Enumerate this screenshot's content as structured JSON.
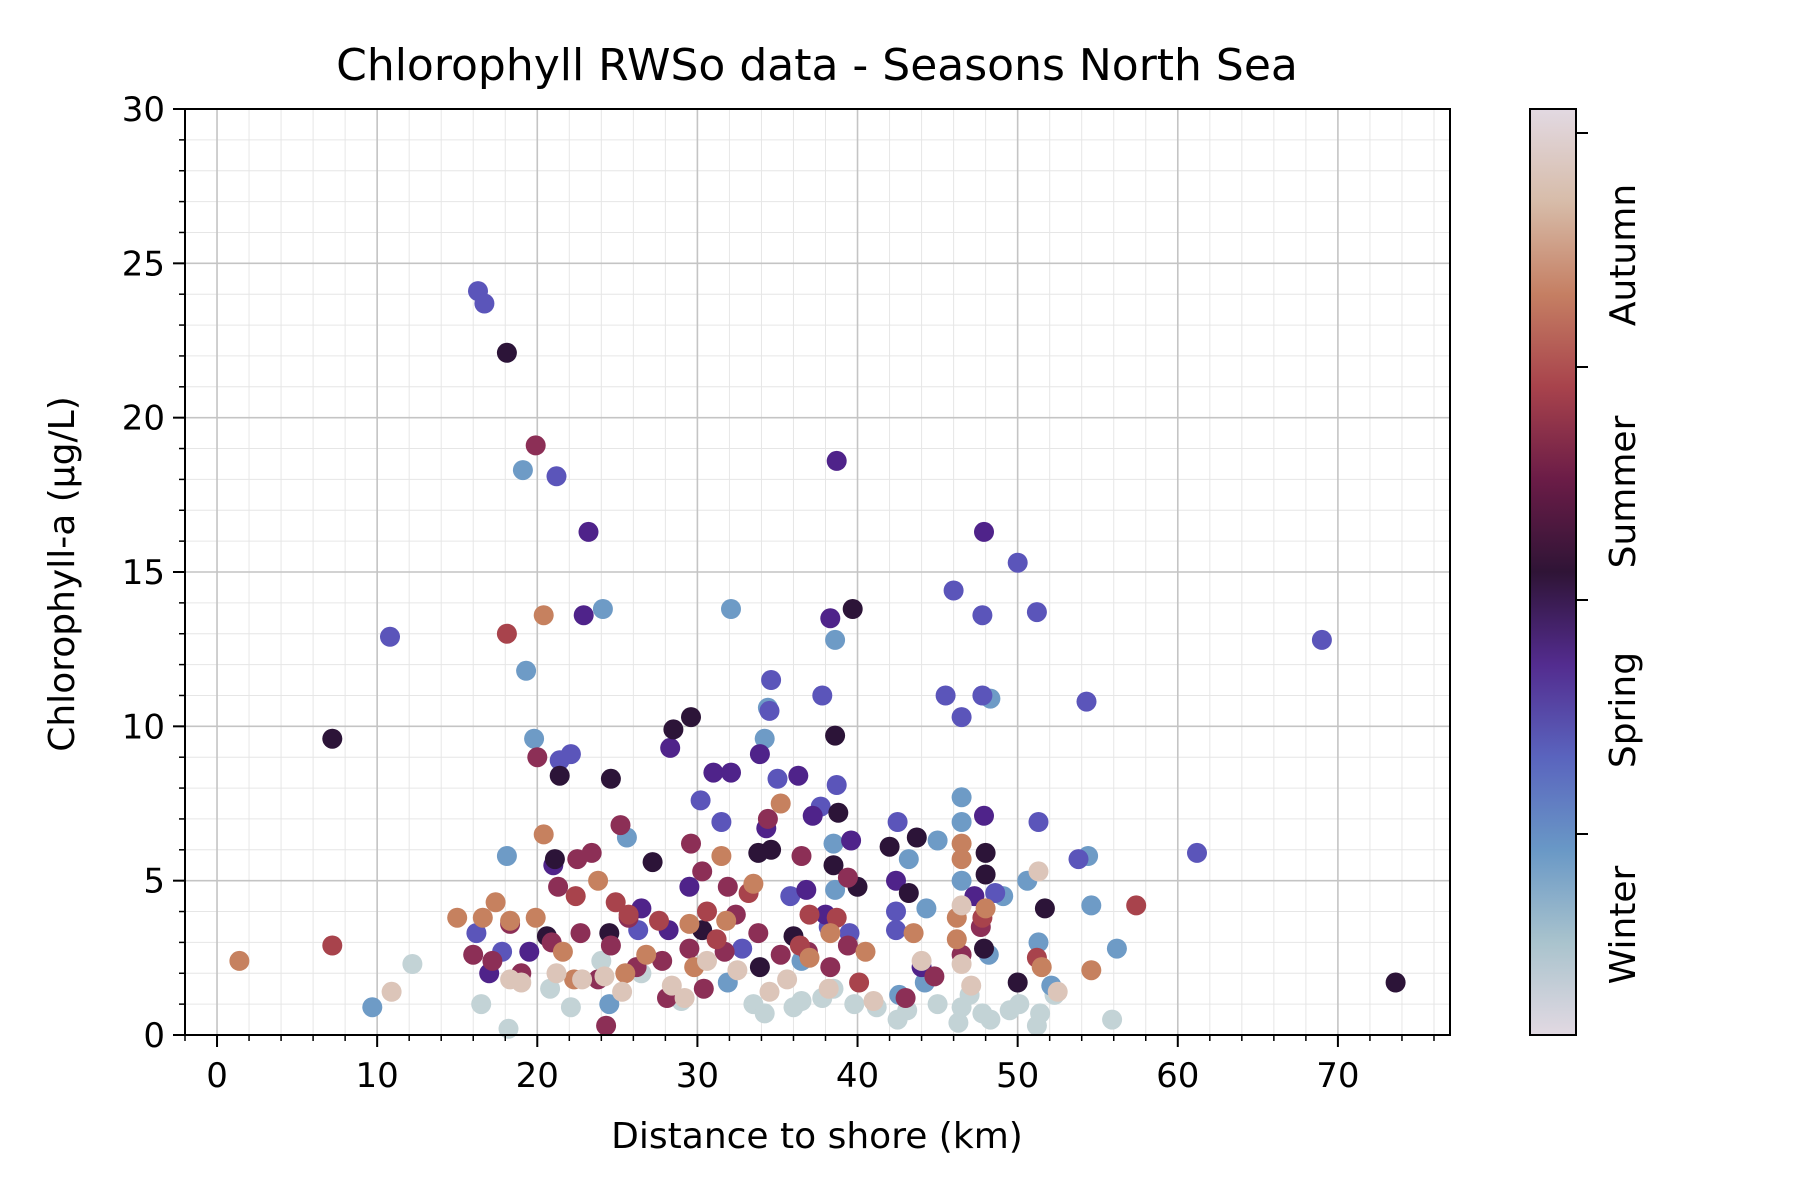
{
  "chart_data": {
    "type": "scatter",
    "title": "Chlorophyll RWSo data - Seasons North Sea",
    "xlabel": "Distance to shore (km)",
    "ylabel": "Chlorophyll-a (µg/L)",
    "xlim": [
      -2,
      77
    ],
    "ylim": [
      0,
      30
    ],
    "x_ticks": [
      0,
      10,
      20,
      30,
      40,
      50,
      60,
      70
    ],
    "x_tick_labels": [
      "0",
      "10",
      "20",
      "30",
      "40",
      "50",
      "60",
      "70"
    ],
    "y_ticks": [
      0,
      5,
      10,
      15,
      20,
      25,
      30
    ],
    "y_tick_labels": [
      "0",
      "5",
      "10",
      "15",
      "20",
      "25",
      "30"
    ],
    "grid": true,
    "colormap": "twilight_shifted",
    "colorbar": {
      "labels": [
        "Winter",
        "Spring",
        "Summer",
        "Autumn"
      ],
      "stops": [
        "#e2d9e2",
        "#a9c3cd",
        "#6998c6",
        "#5a64be",
        "#532c8f",
        "#2f1436",
        "#6b1c47",
        "#a8434c",
        "#c57f63",
        "#d7bca9",
        "#e2d9e2"
      ]
    },
    "series": [
      {
        "season": "winter",
        "color": "#c3d3d6",
        "points": [
          [
            12.2,
            2.3
          ],
          [
            18.2,
            0.2
          ],
          [
            16.5,
            1.0
          ],
          [
            20.8,
            1.5
          ],
          [
            22.1,
            0.9
          ],
          [
            33.5,
            1.0
          ],
          [
            34.2,
            0.7
          ],
          [
            36.5,
            1.1
          ],
          [
            37.8,
            1.2
          ],
          [
            38.5,
            1.5
          ],
          [
            39.8,
            1.0
          ],
          [
            41.2,
            0.9
          ],
          [
            42.5,
            0.5
          ],
          [
            43.1,
            0.8
          ],
          [
            45.0,
            1.0
          ],
          [
            46.3,
            0.4
          ],
          [
            46.5,
            0.9
          ],
          [
            47.8,
            0.7
          ],
          [
            48.3,
            0.5
          ],
          [
            50.1,
            1.0
          ],
          [
            51.2,
            0.3
          ],
          [
            51.4,
            0.7
          ],
          [
            52.3,
            1.3
          ],
          [
            55.9,
            0.5
          ],
          [
            24.0,
            2.4
          ],
          [
            26.5,
            2.0
          ],
          [
            29.0,
            1.1
          ],
          [
            36.0,
            0.9
          ],
          [
            47.0,
            1.3
          ],
          [
            49.5,
            0.8
          ]
        ]
      },
      {
        "season": "winter-blue",
        "color": "#6e9bc6",
        "points": [
          [
            9.7,
            0.9
          ],
          [
            18.1,
            5.8
          ],
          [
            19.1,
            18.3
          ],
          [
            19.3,
            11.8
          ],
          [
            19.8,
            9.6
          ],
          [
            24.1,
            13.8
          ],
          [
            25.6,
            6.4
          ],
          [
            32.1,
            13.8
          ],
          [
            34.4,
            10.6
          ],
          [
            34.2,
            9.6
          ],
          [
            38.6,
            12.8
          ],
          [
            38.5,
            6.2
          ],
          [
            38.6,
            4.7
          ],
          [
            43.2,
            5.7
          ],
          [
            44.3,
            4.1
          ],
          [
            45.0,
            6.3
          ],
          [
            46.5,
            7.7
          ],
          [
            46.5,
            6.9
          ],
          [
            46.5,
            5.0
          ],
          [
            48.3,
            10.9
          ],
          [
            49.1,
            4.5
          ],
          [
            50.6,
            5.0
          ],
          [
            51.3,
            3.0
          ],
          [
            52.1,
            1.6
          ],
          [
            54.4,
            5.8
          ],
          [
            54.6,
            4.2
          ],
          [
            56.2,
            2.8
          ],
          [
            42.6,
            1.3
          ],
          [
            44.2,
            1.7
          ],
          [
            48.2,
            2.6
          ],
          [
            24.5,
            1.0
          ],
          [
            31.9,
            1.7
          ],
          [
            36.5,
            2.4
          ]
        ]
      },
      {
        "season": "spring",
        "color": "#5b55ba",
        "points": [
          [
            16.3,
            24.1
          ],
          [
            16.7,
            23.7
          ],
          [
            10.8,
            12.9
          ],
          [
            21.2,
            18.1
          ],
          [
            21.4,
            8.9
          ],
          [
            22.1,
            9.1
          ],
          [
            30.2,
            7.6
          ],
          [
            31.5,
            6.9
          ],
          [
            34.6,
            11.5
          ],
          [
            34.5,
            10.5
          ],
          [
            35.0,
            8.3
          ],
          [
            37.8,
            11.0
          ],
          [
            38.7,
            8.1
          ],
          [
            37.7,
            7.4
          ],
          [
            46.0,
            14.4
          ],
          [
            45.5,
            11.0
          ],
          [
            46.5,
            10.3
          ],
          [
            47.8,
            13.6
          ],
          [
            47.8,
            11.0
          ],
          [
            48.6,
            4.6
          ],
          [
            50.0,
            15.3
          ],
          [
            51.2,
            13.7
          ],
          [
            51.3,
            6.9
          ],
          [
            54.3,
            10.8
          ],
          [
            53.8,
            5.7
          ],
          [
            61.2,
            5.9
          ],
          [
            69.0,
            12.8
          ],
          [
            42.5,
            6.9
          ],
          [
            42.4,
            4.0
          ],
          [
            42.4,
            3.4
          ],
          [
            17.8,
            2.7
          ],
          [
            16.2,
            3.3
          ],
          [
            26.3,
            3.4
          ],
          [
            35.8,
            4.5
          ],
          [
            39.5,
            3.3
          ],
          [
            38.2,
            3.5
          ],
          [
            32.8,
            2.8
          ]
        ]
      },
      {
        "season": "spring-deep",
        "color": "#4f238a",
        "points": [
          [
            23.2,
            16.3
          ],
          [
            22.9,
            13.6
          ],
          [
            38.7,
            18.6
          ],
          [
            38.3,
            13.5
          ],
          [
            28.3,
            9.3
          ],
          [
            33.9,
            9.1
          ],
          [
            36.3,
            8.4
          ],
          [
            31.0,
            8.5
          ],
          [
            32.1,
            8.5
          ],
          [
            34.3,
            6.7
          ],
          [
            37.2,
            7.1
          ],
          [
            39.6,
            6.3
          ],
          [
            42.4,
            5.0
          ],
          [
            47.9,
            16.3
          ],
          [
            47.9,
            7.1
          ],
          [
            47.3,
            4.5
          ],
          [
            17.0,
            2.0
          ],
          [
            19.5,
            2.7
          ],
          [
            26.5,
            4.1
          ],
          [
            28.2,
            3.4
          ],
          [
            29.5,
            4.8
          ],
          [
            36.8,
            4.7
          ],
          [
            38.0,
            3.9
          ],
          [
            44.0,
            2.2
          ],
          [
            21.0,
            5.5
          ]
        ]
      },
      {
        "season": "summer-dark",
        "color": "#2c1438",
        "points": [
          [
            7.2,
            9.6
          ],
          [
            18.1,
            22.1
          ],
          [
            21.4,
            8.4
          ],
          [
            24.6,
            8.3
          ],
          [
            28.5,
            9.9
          ],
          [
            29.6,
            10.3
          ],
          [
            38.6,
            9.7
          ],
          [
            39.7,
            13.8
          ],
          [
            38.8,
            7.2
          ],
          [
            38.5,
            5.5
          ],
          [
            34.6,
            6.0
          ],
          [
            27.2,
            5.6
          ],
          [
            33.8,
            5.9
          ],
          [
            21.1,
            5.7
          ],
          [
            43.7,
            6.4
          ],
          [
            48.0,
            5.9
          ],
          [
            48.0,
            5.2
          ],
          [
            50.0,
            1.7
          ],
          [
            51.7,
            4.1
          ],
          [
            73.6,
            1.7
          ],
          [
            20.6,
            3.2
          ],
          [
            24.5,
            3.3
          ],
          [
            30.3,
            3.4
          ],
          [
            33.9,
            2.2
          ],
          [
            36.0,
            3.2
          ],
          [
            40.0,
            4.8
          ],
          [
            43.2,
            4.6
          ],
          [
            47.9,
            2.8
          ],
          [
            42.0,
            6.1
          ]
        ]
      },
      {
        "season": "summer",
        "color": "#8c2f56",
        "points": [
          [
            19.9,
            19.1
          ],
          [
            20.0,
            9.0
          ],
          [
            22.5,
            5.7
          ],
          [
            23.4,
            5.9
          ],
          [
            25.2,
            6.8
          ],
          [
            29.6,
            6.2
          ],
          [
            30.3,
            5.3
          ],
          [
            31.9,
            4.8
          ],
          [
            34.4,
            7.0
          ],
          [
            36.5,
            5.8
          ],
          [
            39.4,
            5.1
          ],
          [
            21.3,
            4.8
          ],
          [
            16.0,
            2.6
          ],
          [
            17.2,
            2.4
          ],
          [
            18.3,
            3.6
          ],
          [
            20.9,
            3.0
          ],
          [
            22.7,
            3.3
          ],
          [
            24.6,
            2.9
          ],
          [
            25.7,
            3.8
          ],
          [
            27.8,
            2.4
          ],
          [
            28.1,
            1.2
          ],
          [
            29.5,
            2.8
          ],
          [
            30.4,
            1.5
          ],
          [
            31.7,
            2.7
          ],
          [
            33.8,
            3.3
          ],
          [
            35.2,
            2.6
          ],
          [
            36.9,
            2.7
          ],
          [
            38.3,
            2.2
          ],
          [
            39.4,
            2.9
          ],
          [
            43.0,
            1.2
          ],
          [
            46.5,
            2.6
          ],
          [
            47.7,
            3.5
          ],
          [
            19.0,
            2.0
          ],
          [
            23.8,
            1.8
          ],
          [
            26.2,
            2.2
          ],
          [
            32.4,
            3.9
          ],
          [
            44.8,
            1.9
          ],
          [
            24.3,
            0.3
          ]
        ]
      },
      {
        "season": "summer-late",
        "color": "#a8434c",
        "points": [
          [
            7.2,
            2.9
          ],
          [
            18.1,
            13.0
          ],
          [
            22.4,
            4.5
          ],
          [
            24.9,
            4.3
          ],
          [
            25.7,
            3.9
          ],
          [
            30.6,
            4.0
          ],
          [
            33.2,
            4.6
          ],
          [
            37.0,
            3.9
          ],
          [
            38.7,
            3.8
          ],
          [
            47.8,
            3.8
          ],
          [
            51.2,
            2.5
          ],
          [
            57.4,
            4.2
          ],
          [
            40.1,
            1.7
          ],
          [
            36.4,
            2.9
          ],
          [
            27.6,
            3.7
          ],
          [
            31.2,
            3.1
          ]
        ]
      },
      {
        "season": "autumn",
        "color": "#c6815f",
        "points": [
          [
            1.4,
            2.4
          ],
          [
            15.0,
            3.8
          ],
          [
            16.6,
            3.8
          ],
          [
            17.4,
            4.3
          ],
          [
            18.3,
            3.7
          ],
          [
            19.9,
            3.8
          ],
          [
            20.4,
            6.5
          ],
          [
            20.4,
            13.6
          ],
          [
            22.3,
            1.8
          ],
          [
            23.8,
            5.0
          ],
          [
            25.5,
            2.0
          ],
          [
            26.8,
            2.6
          ],
          [
            29.5,
            3.6
          ],
          [
            29.8,
            2.2
          ],
          [
            31.5,
            5.8
          ],
          [
            33.5,
            4.9
          ],
          [
            35.2,
            7.5
          ],
          [
            38.3,
            3.3
          ],
          [
            40.5,
            2.7
          ],
          [
            43.5,
            3.3
          ],
          [
            46.5,
            6.2
          ],
          [
            46.5,
            5.7
          ],
          [
            46.2,
            3.8
          ],
          [
            46.2,
            3.1
          ],
          [
            48.0,
            4.1
          ],
          [
            51.5,
            2.2
          ],
          [
            54.6,
            2.1
          ],
          [
            37.0,
            2.5
          ],
          [
            31.8,
            3.7
          ],
          [
            21.6,
            2.7
          ]
        ]
      },
      {
        "season": "autumn-pale",
        "color": "#dcc5b9",
        "points": [
          [
            10.9,
            1.4
          ],
          [
            18.3,
            1.8
          ],
          [
            19.0,
            1.7
          ],
          [
            21.2,
            2.0
          ],
          [
            22.8,
            1.8
          ],
          [
            24.2,
            1.9
          ],
          [
            25.3,
            1.4
          ],
          [
            28.4,
            1.6
          ],
          [
            29.2,
            1.2
          ],
          [
            32.5,
            2.1
          ],
          [
            34.5,
            1.4
          ],
          [
            38.2,
            1.5
          ],
          [
            41.0,
            1.1
          ],
          [
            44.0,
            2.4
          ],
          [
            46.5,
            4.2
          ],
          [
            46.5,
            2.3
          ],
          [
            47.1,
            1.6
          ],
          [
            51.3,
            5.3
          ],
          [
            52.5,
            1.4
          ],
          [
            30.6,
            2.4
          ],
          [
            35.6,
            1.8
          ]
        ]
      }
    ]
  }
}
